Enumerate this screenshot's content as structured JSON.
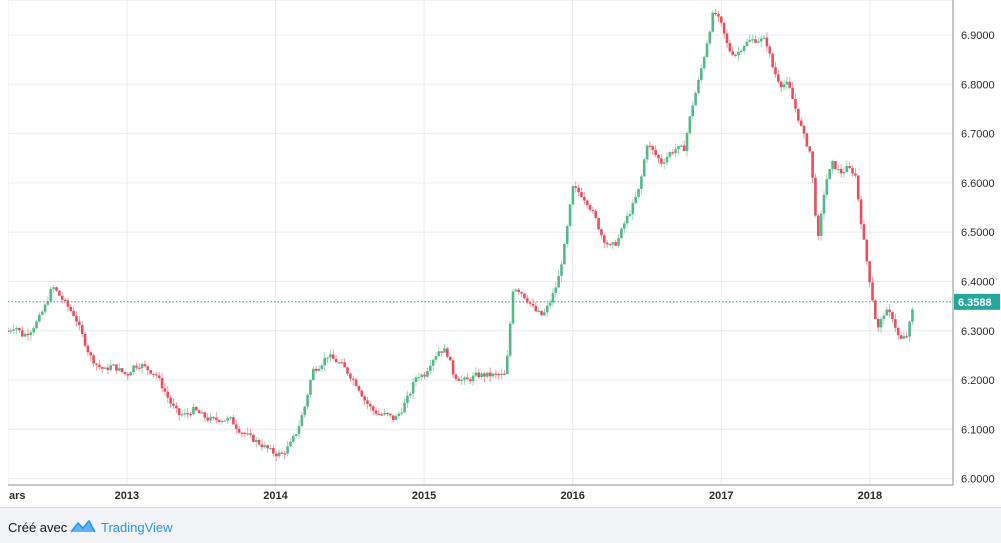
{
  "chart_data": {
    "type": "candlestick",
    "y_range": [
      5.98,
      6.98
    ],
    "y_ticks": [
      "6.0000",
      "6.1000",
      "6.2000",
      "6.3000",
      "6.4000",
      "6.5000",
      "6.6000",
      "6.7000",
      "6.8000",
      "6.9000"
    ],
    "x_range": [
      2012.2,
      2018.5
    ],
    "x_ticks": [
      {
        "label": "ars",
        "value": 2012.2
      },
      {
        "label": "2013",
        "value": 2013.0
      },
      {
        "label": "2014",
        "value": 2014.0
      },
      {
        "label": "2015",
        "value": 2015.0
      },
      {
        "label": "2016",
        "value": 2016.0
      },
      {
        "label": "2017",
        "value": 2017.0
      },
      {
        "label": "2018",
        "value": 2018.0
      }
    ],
    "last_price": "6.3588",
    "last_value": 6.3588,
    "colors": {
      "up": "#53b987",
      "down": "#eb4d5c",
      "grid": "#e9ecef",
      "price_line": "#26a69a",
      "price_label_bg": "#26a69a"
    },
    "grid": true,
    "close_path": [
      [
        2012.2,
        6.3
      ],
      [
        2012.25,
        6.31
      ],
      [
        2012.3,
        6.29
      ],
      [
        2012.35,
        6.3
      ],
      [
        2012.4,
        6.32
      ],
      [
        2012.45,
        6.35
      ],
      [
        2012.5,
        6.39
      ],
      [
        2012.55,
        6.37
      ],
      [
        2012.6,
        6.35
      ],
      [
        2012.65,
        6.33
      ],
      [
        2012.7,
        6.29
      ],
      [
        2012.75,
        6.25
      ],
      [
        2012.8,
        6.23
      ],
      [
        2012.85,
        6.22
      ],
      [
        2012.9,
        6.23
      ],
      [
        2012.95,
        6.22
      ],
      [
        2013.0,
        6.21
      ],
      [
        2013.05,
        6.23
      ],
      [
        2013.1,
        6.23
      ],
      [
        2013.15,
        6.22
      ],
      [
        2013.2,
        6.21
      ],
      [
        2013.25,
        6.18
      ],
      [
        2013.3,
        6.15
      ],
      [
        2013.35,
        6.13
      ],
      [
        2013.4,
        6.13
      ],
      [
        2013.45,
        6.14
      ],
      [
        2013.5,
        6.13
      ],
      [
        2013.55,
        6.12
      ],
      [
        2013.6,
        6.12
      ],
      [
        2013.65,
        6.12
      ],
      [
        2013.7,
        6.12
      ],
      [
        2013.75,
        6.1
      ],
      [
        2013.8,
        6.09
      ],
      [
        2013.85,
        6.08
      ],
      [
        2013.9,
        6.07
      ],
      [
        2013.95,
        6.06
      ],
      [
        2014.0,
        6.05
      ],
      [
        2014.05,
        6.05
      ],
      [
        2014.1,
        6.07
      ],
      [
        2014.15,
        6.1
      ],
      [
        2014.2,
        6.15
      ],
      [
        2014.25,
        6.22
      ],
      [
        2014.3,
        6.23
      ],
      [
        2014.35,
        6.25
      ],
      [
        2014.4,
        6.24
      ],
      [
        2014.45,
        6.23
      ],
      [
        2014.5,
        6.21
      ],
      [
        2014.55,
        6.19
      ],
      [
        2014.6,
        6.16
      ],
      [
        2014.65,
        6.14
      ],
      [
        2014.7,
        6.13
      ],
      [
        2014.75,
        6.13
      ],
      [
        2014.8,
        6.12
      ],
      [
        2014.85,
        6.14
      ],
      [
        2014.9,
        6.17
      ],
      [
        2014.95,
        6.21
      ],
      [
        2015.0,
        6.21
      ],
      [
        2015.05,
        6.24
      ],
      [
        2015.1,
        6.26
      ],
      [
        2015.15,
        6.26
      ],
      [
        2015.2,
        6.21
      ],
      [
        2015.25,
        6.2
      ],
      [
        2015.3,
        6.2
      ],
      [
        2015.35,
        6.21
      ],
      [
        2015.4,
        6.21
      ],
      [
        2015.45,
        6.21
      ],
      [
        2015.5,
        6.21
      ],
      [
        2015.55,
        6.21
      ],
      [
        2015.6,
        6.39
      ],
      [
        2015.65,
        6.38
      ],
      [
        2015.7,
        6.36
      ],
      [
        2015.75,
        6.34
      ],
      [
        2015.8,
        6.33
      ],
      [
        2015.85,
        6.36
      ],
      [
        2015.9,
        6.4
      ],
      [
        2015.95,
        6.48
      ],
      [
        2016.0,
        6.59
      ],
      [
        2016.05,
        6.58
      ],
      [
        2016.1,
        6.56
      ],
      [
        2016.15,
        6.53
      ],
      [
        2016.2,
        6.49
      ],
      [
        2016.25,
        6.47
      ],
      [
        2016.3,
        6.48
      ],
      [
        2016.35,
        6.52
      ],
      [
        2016.4,
        6.55
      ],
      [
        2016.45,
        6.59
      ],
      [
        2016.5,
        6.68
      ],
      [
        2016.55,
        6.66
      ],
      [
        2016.6,
        6.64
      ],
      [
        2016.65,
        6.66
      ],
      [
        2016.7,
        6.67
      ],
      [
        2016.75,
        6.67
      ],
      [
        2016.8,
        6.75
      ],
      [
        2016.85,
        6.81
      ],
      [
        2016.9,
        6.88
      ],
      [
        2016.95,
        6.95
      ],
      [
        2017.0,
        6.92
      ],
      [
        2017.05,
        6.87
      ],
      [
        2017.1,
        6.86
      ],
      [
        2017.15,
        6.88
      ],
      [
        2017.2,
        6.89
      ],
      [
        2017.25,
        6.89
      ],
      [
        2017.3,
        6.89
      ],
      [
        2017.35,
        6.83
      ],
      [
        2017.4,
        6.8
      ],
      [
        2017.45,
        6.8
      ],
      [
        2017.5,
        6.75
      ],
      [
        2017.55,
        6.7
      ],
      [
        2017.6,
        6.66
      ],
      [
        2017.65,
        6.48
      ],
      [
        2017.7,
        6.6
      ],
      [
        2017.75,
        6.64
      ],
      [
        2017.8,
        6.62
      ],
      [
        2017.85,
        6.63
      ],
      [
        2017.9,
        6.62
      ],
      [
        2017.95,
        6.5
      ],
      [
        2018.0,
        6.4
      ],
      [
        2018.05,
        6.3
      ],
      [
        2018.1,
        6.34
      ],
      [
        2018.15,
        6.33
      ],
      [
        2018.2,
        6.28
      ],
      [
        2018.25,
        6.29
      ],
      [
        2018.3,
        6.3588
      ]
    ]
  },
  "footer": {
    "created_with": "Créé avec",
    "brand": "TradingView"
  }
}
